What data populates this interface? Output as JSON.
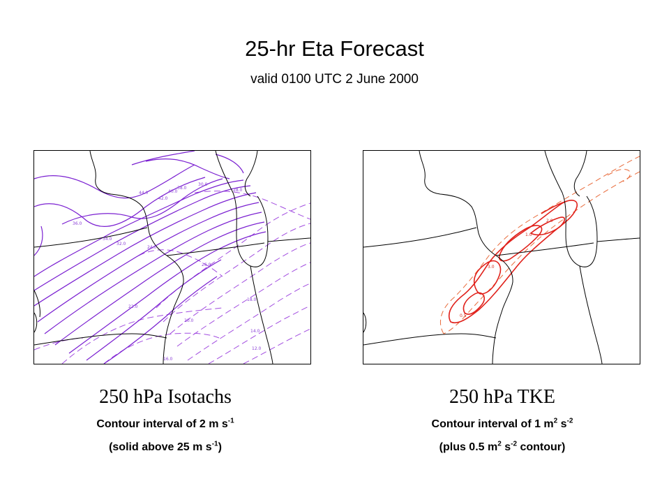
{
  "header": {
    "title": "25-hr Eta Forecast",
    "subtitle": "valid 0100 UTC 2 June 2000"
  },
  "left_panel": {
    "title": "250 hPa Isotachs",
    "interval_prefix": "Contour interval of 2 m s",
    "interval_exp": "-1",
    "note_prefix": "(solid above 25 m s",
    "note_exp": "-1",
    "note_suffix": ")",
    "line_color": "#7a1fd1",
    "contour_labels": [
      "44.0",
      "42.0",
      "40.0",
      "38.0",
      "36.0",
      "34.0",
      "32.0",
      "30.0",
      "28.0",
      "26.0",
      "24.0",
      "22.0",
      "20.0",
      "18.0",
      "16.0",
      "14.0",
      "12.0"
    ]
  },
  "right_panel": {
    "title": "250 hPa TKE",
    "interval_prefix": "Contour interval of 1 m",
    "interval_exp1": "2",
    "interval_mid": " s",
    "interval_exp2": "-2",
    "note_prefix": "(plus 0.5 m",
    "note_exp1": "2",
    "note_mid": " s",
    "note_exp2": "-2",
    "note_suffix": " contour)",
    "line_color": "#e0201a",
    "contour_labels": [
      "1.0",
      "2.0",
      "3.0",
      "0.5"
    ]
  }
}
